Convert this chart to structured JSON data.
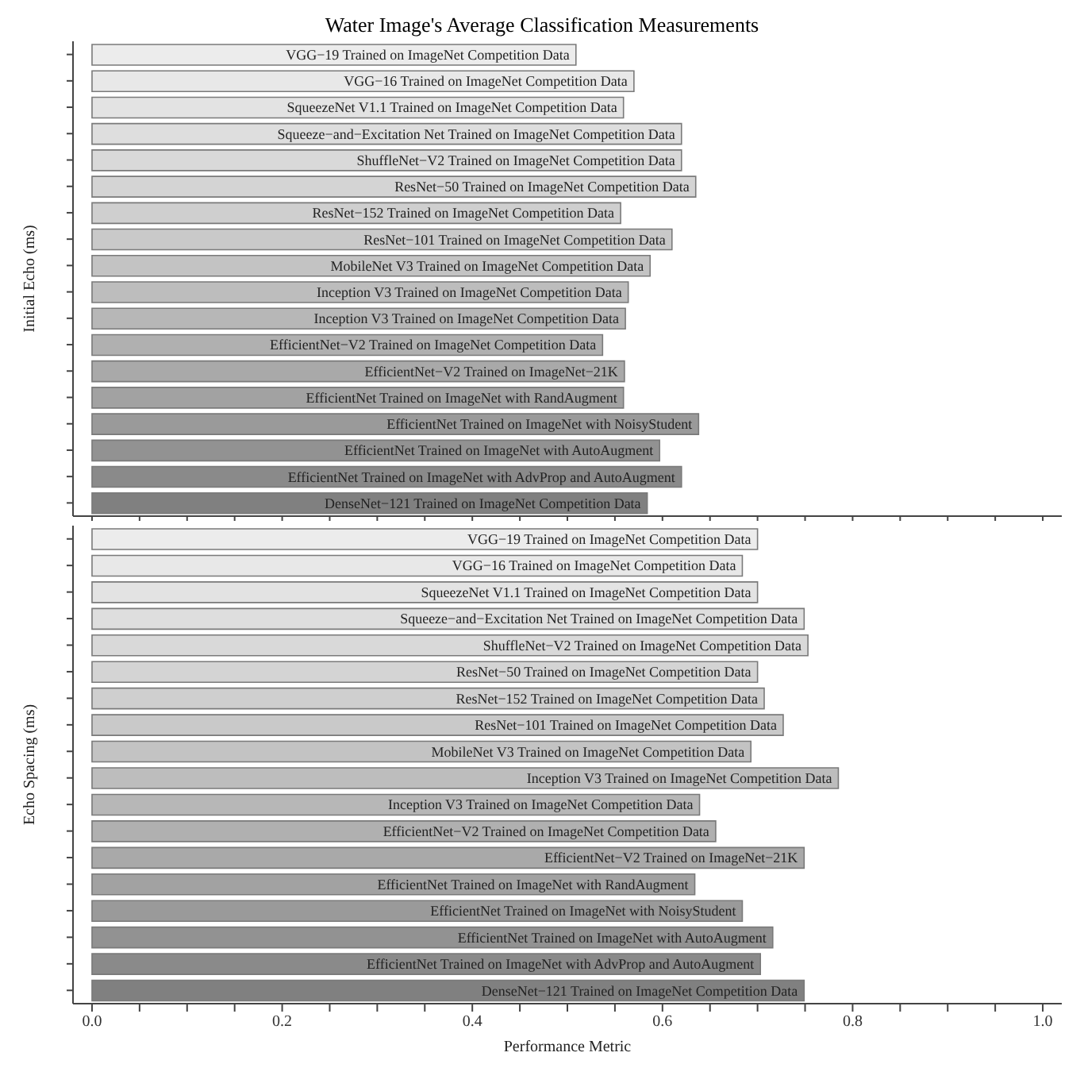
{
  "chart_data": [
    {
      "type": "bar",
      "orientation": "horizontal",
      "title": "Water Image's Average Classification Measurements",
      "ylabel": "Initial Echo (ms)",
      "tick_labels": false,
      "categories": [
        "VGG−19 Trained on ImageNet Competition Data",
        "VGG−16 Trained on ImageNet Competition Data",
        "SqueezeNet V1.1 Trained on ImageNet Competition Data",
        "Squeeze−and−Excitation Net Trained on ImageNet Competition Data",
        "ShuffleNet−V2 Trained on ImageNet Competition Data",
        "ResNet−50 Trained on ImageNet Competition Data",
        "ResNet−152 Trained on ImageNet Competition Data",
        "ResNet−101 Trained on ImageNet Competition Data",
        "MobileNet V3 Trained on ImageNet Competition Data",
        "Inception V3 Trained on ImageNet Competition Data",
        "Inception V3 Trained on ImageNet Competition Data",
        "EfficientNet−V2 Trained on ImageNet Competition Data",
        "EfficientNet−V2 Trained on ImageNet−21K",
        "EfficientNet Trained on ImageNet with RandAugment",
        "EfficientNet Trained on ImageNet with NoisyStudent",
        "EfficientNet Trained on ImageNet with AutoAugment",
        "EfficientNet Trained on ImageNet with AdvProp and AutoAugment",
        "DenseNet−121 Trained on ImageNet Competition Data"
      ],
      "values": [
        0.509,
        0.57,
        0.559,
        0.62,
        0.62,
        0.635,
        0.556,
        0.61,
        0.587,
        0.564,
        0.561,
        0.537,
        0.56,
        0.559,
        0.638,
        0.597,
        0.62,
        0.584
      ],
      "colors": [
        "#ececec",
        "#e8e8e8",
        "#e3e3e3",
        "#dedede",
        "#d9d9d9",
        "#d4d4d4",
        "#cfcfcf",
        "#c9c9c9",
        "#c3c3c3",
        "#bdbdbd",
        "#b7b7b7",
        "#b0b0b0",
        "#a9a9a9",
        "#a2a2a2",
        "#9a9a9a",
        "#929292",
        "#8a8a8a",
        "#808080"
      ],
      "xlim": [
        -0.02,
        1.02
      ],
      "xticks": [
        0,
        {
          "value": 0.05,
          "label": null
        },
        {
          "value": 0.1,
          "label": null
        },
        {
          "value": 0.15,
          "label": null
        },
        0.2,
        {
          "value": 0.25,
          "label": null
        },
        {
          "value": 0.3,
          "label": null
        },
        {
          "value": 0.35,
          "label": null
        },
        0.4,
        {
          "value": 0.45,
          "label": null
        },
        {
          "value": 0.5,
          "label": null
        },
        {
          "value": 0.55,
          "label": null
        },
        0.6,
        {
          "value": 0.65,
          "label": null
        },
        {
          "value": 0.7,
          "label": null
        },
        {
          "value": 0.75,
          "label": null
        },
        0.8,
        {
          "value": 0.85,
          "label": null
        },
        {
          "value": 0.9,
          "label": null
        },
        {
          "value": 0.95,
          "label": null
        },
        1
      ]
    },
    {
      "type": "bar",
      "orientation": "horizontal",
      "xlabel": "Performance Metric",
      "ylabel": "Echo Spacing (ms)",
      "tick_labels": "x",
      "categories": [
        "VGG−19 Trained on ImageNet Competition Data",
        "VGG−16 Trained on ImageNet Competition Data",
        "SqueezeNet V1.1 Trained on ImageNet Competition Data",
        "Squeeze−and−Excitation Net Trained on ImageNet Competition Data",
        "ShuffleNet−V2 Trained on ImageNet Competition Data",
        "ResNet−50 Trained on ImageNet Competition Data",
        "ResNet−152 Trained on ImageNet Competition Data",
        "ResNet−101 Trained on ImageNet Competition Data",
        "MobileNet V3 Trained on ImageNet Competition Data",
        "Inception V3 Trained on ImageNet Competition Data",
        "Inception V3 Trained on ImageNet Competition Data",
        "EfficientNet−V2 Trained on ImageNet Competition Data",
        "EfficientNet−V2 Trained on ImageNet−21K",
        "EfficientNet Trained on ImageNet with RandAugment",
        "EfficientNet Trained on ImageNet with NoisyStudent",
        "EfficientNet Trained on ImageNet with AutoAugment",
        "EfficientNet Trained on ImageNet with AdvProp and AutoAugment",
        "DenseNet−121 Trained on ImageNet Competition Data"
      ],
      "values": [
        0.7,
        0.684,
        0.7,
        0.749,
        0.753,
        0.7,
        0.707,
        0.727,
        0.693,
        0.785,
        0.639,
        0.656,
        0.749,
        0.634,
        0.684,
        0.716,
        0.703,
        0.749
      ],
      "colors": [
        "#ececec",
        "#e8e8e8",
        "#e3e3e3",
        "#dedede",
        "#d9d9d9",
        "#d4d4d4",
        "#cfcfcf",
        "#c9c9c9",
        "#c3c3c3",
        "#bdbdbd",
        "#b7b7b7",
        "#b0b0b0",
        "#a9a9a9",
        "#a2a2a2",
        "#9a9a9a",
        "#929292",
        "#8a8a8a",
        "#808080"
      ],
      "xlim": [
        -0.02,
        1.02
      ],
      "xticks": [
        {
          "value": 0,
          "label": "0.0"
        },
        {
          "value": 0.05,
          "label": null
        },
        {
          "value": 0.1,
          "label": null
        },
        {
          "value": 0.15,
          "label": null
        },
        0.2,
        {
          "value": 0.25,
          "label": null
        },
        {
          "value": 0.3,
          "label": null
        },
        {
          "value": 0.35,
          "label": null
        },
        0.4,
        {
          "value": 0.45,
          "label": null
        },
        {
          "value": 0.5,
          "label": null
        },
        {
          "value": 0.55,
          "label": null
        },
        0.6,
        {
          "value": 0.65,
          "label": null
        },
        {
          "value": 0.7,
          "label": null
        },
        {
          "value": 0.75,
          "label": null
        },
        0.8,
        {
          "value": 0.85,
          "label": null
        },
        {
          "value": 0.9,
          "label": null
        },
        {
          "value": 0.95,
          "label": null
        },
        {
          "value": 1,
          "label": "1.0"
        }
      ]
    }
  ]
}
